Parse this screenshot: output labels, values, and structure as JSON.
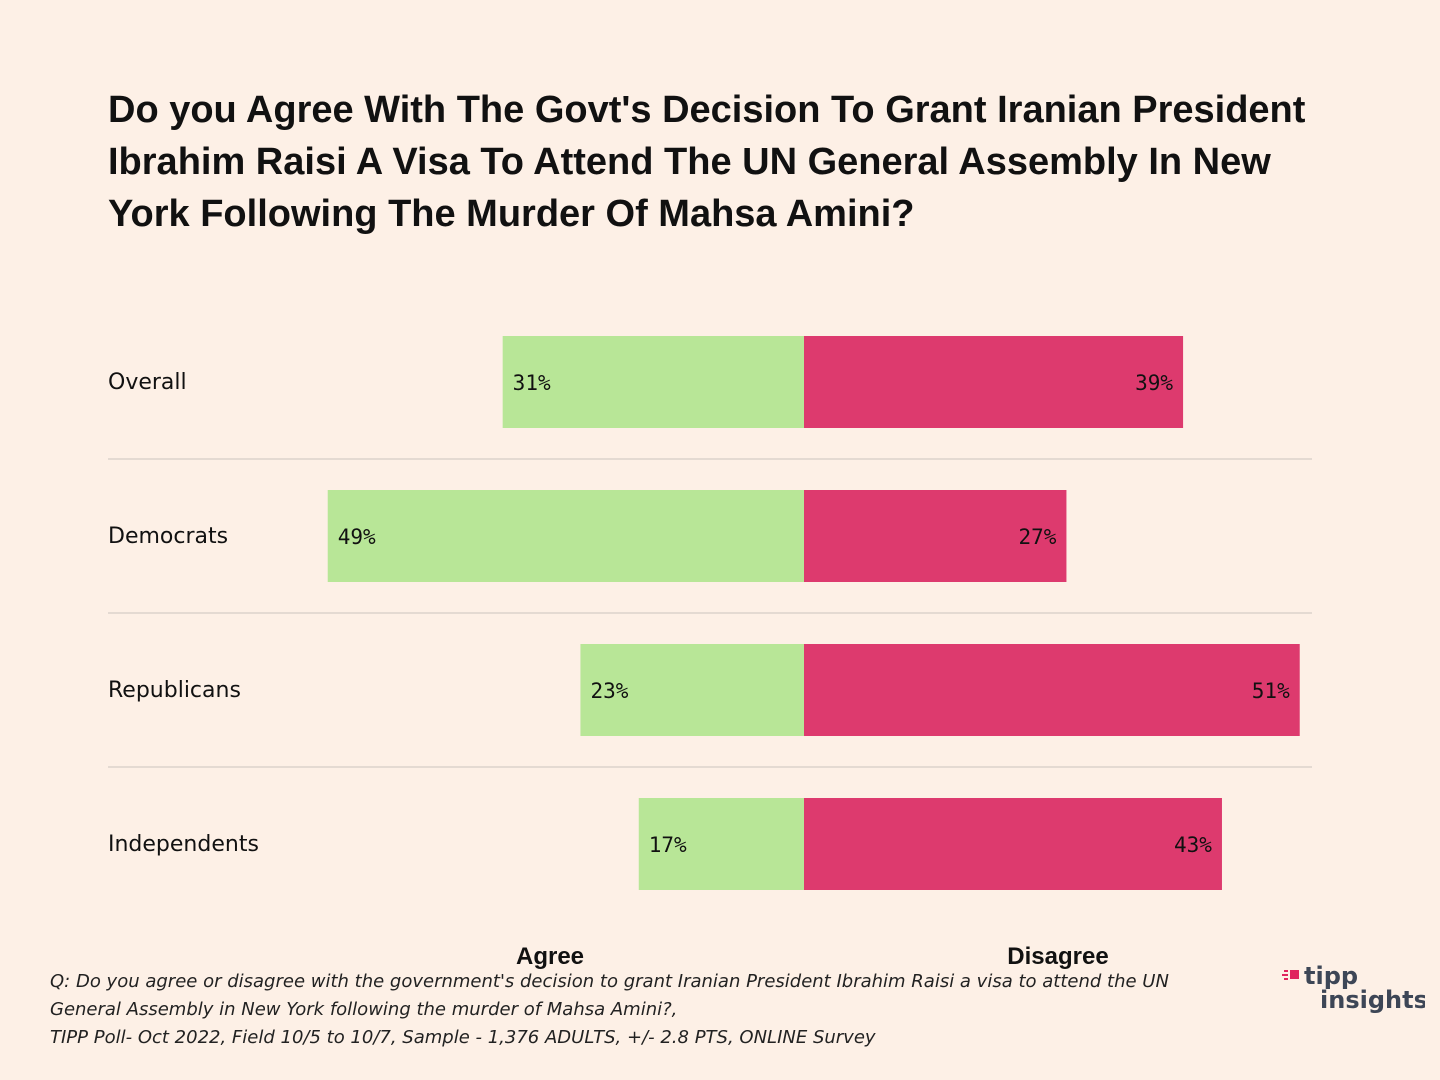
{
  "chart_data": {
    "type": "bar",
    "orientation": "horizontal-diverging",
    "title": "Do you Agree With The Govt's Decision To Grant Iranian President Ibrahim Raisi A Visa To Attend The UN General Assembly In New York Following The Murder Of Mahsa Amini?",
    "categories": [
      "Overall",
      "Democrats",
      "Republicans",
      "Independents"
    ],
    "series": [
      {
        "name": "Agree",
        "values": [
          31,
          49,
          23,
          17
        ],
        "labels": [
          "31%",
          "49%",
          "23%",
          "17%"
        ],
        "color": "#b8e697"
      },
      {
        "name": "Disagree",
        "values": [
          39,
          27,
          51,
          43
        ],
        "labels": [
          "39%",
          "27%",
          "51%",
          "43%"
        ],
        "color": "#dd3a6e"
      }
    ],
    "unit": "%",
    "legend": [
      "Agree",
      "Disagree"
    ]
  },
  "footnote": {
    "line1": "Q: Do you agree or disagree with the government's decision to grant Iranian President Ibrahim Raisi a visa to attend the UN",
    "line2": "General Assembly in New York following the murder of Mahsa Amini?,",
    "line3": "TIPP Poll- Oct 2022, Field 10/5 to 10/7, Sample - 1,376 ADULTS, +/- 2.8 PTS, ONLINE Survey"
  },
  "logo": {
    "line1": "tipp",
    "line2": "insights",
    "name": "tipp-insights-logo",
    "accent": "#e0245e"
  }
}
